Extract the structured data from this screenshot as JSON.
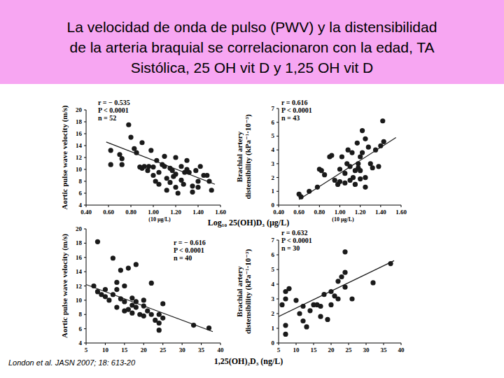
{
  "header": {
    "title": [
      "La velocidad de onda de pulso (PWV) y la distensibilidad",
      "de la arteria braquial se correlacionaron con la edad, TA",
      "Sistólica, 25 OH vit D y 1,25 OH vit D"
    ]
  },
  "footer": {
    "source": "London et al. JASN 2007; 18: 613-20"
  },
  "chart_data": [
    {
      "type": "scatter",
      "x_label": "Log₁₀ 25(OH)D₃ (µg/L)",
      "x_note": "(10 µg/L)",
      "y_label": [
        "Aortic pulse wave velocity (m/s)"
      ],
      "annotations": [
        "r = − 0.535",
        "P < 0.0001",
        "n = 52"
      ],
      "xlim": [
        0.4,
        1.6
      ],
      "xticks": [
        {
          "value": 0.4,
          "label": "0.40"
        },
        {
          "value": 0.6,
          "label": "0.60"
        },
        {
          "value": 0.8,
          "label": "0.80"
        },
        {
          "value": 1.0,
          "label": "1.00"
        },
        {
          "value": 1.2,
          "label": "1.20"
        },
        {
          "value": 1.4,
          "label": "1.40"
        },
        {
          "value": 1.6,
          "label": "1.60"
        }
      ],
      "ylim": [
        4,
        20
      ],
      "yticks": [
        4,
        6,
        8,
        10,
        12,
        14,
        16,
        18,
        20
      ],
      "series": [
        {
          "type": "scatter",
          "marker": "circle",
          "color": "#1a1a1a",
          "x": [
            0.62,
            0.62,
            0.7,
            0.72,
            0.72,
            0.78,
            0.8,
            0.83,
            0.85,
            0.88,
            0.9,
            0.9,
            0.92,
            0.96,
            0.98,
            1.0,
            1.0,
            1.02,
            1.03,
            1.05,
            1.05,
            1.08,
            1.1,
            1.1,
            1.12,
            1.12,
            1.15,
            1.17,
            1.18,
            1.2,
            1.2,
            1.2,
            1.22,
            1.25,
            1.25,
            1.27,
            1.28,
            1.3,
            1.3,
            1.32,
            1.35,
            1.35,
            1.38,
            1.4,
            1.4,
            1.42,
            1.45,
            1.48,
            1.5,
            1.52,
            0.95,
            1.15
          ],
          "values": [
            13.2,
            10.8,
            12.5,
            11.8,
            10.8,
            17.5,
            15.4,
            13.5,
            12.8,
            10.4,
            10.2,
            14.5,
            10.5,
            10.5,
            13.2,
            9.0,
            10.4,
            8.0,
            11.5,
            9.5,
            7.5,
            10.8,
            10.5,
            12.2,
            8.5,
            6.5,
            10.2,
            9.8,
            8.8,
            9.2,
            12.0,
            7.0,
            6.0,
            10.5,
            8.2,
            7.5,
            9.5,
            11.5,
            10.0,
            9.5,
            7.2,
            6.2,
            9.8,
            8.0,
            7.0,
            10.5,
            9.0,
            9.0,
            8.0,
            6.5,
            9.8,
            7.8
          ]
        },
        {
          "type": "line",
          "line_style": "solid",
          "color": "#1a1a1a",
          "x": [
            0.58,
            1.55
          ],
          "values": [
            14.6,
            7.5
          ]
        }
      ]
    },
    {
      "type": "scatter",
      "x_note": "(10 µg/L)",
      "y_label": [
        "Brachial artery",
        "distensibility (kPa⁻¹·10⁻³)"
      ],
      "annotations": [
        "r = 0.616",
        "P < 0.0001",
        "n = 43"
      ],
      "xlim": [
        0.4,
        1.6
      ],
      "xticks": [
        {
          "value": 0.4,
          "label": "0.40"
        },
        {
          "value": 0.6,
          "label": "0.60"
        },
        {
          "value": 0.8,
          "label": "0.80"
        },
        {
          "value": 1.0,
          "label": "1.00"
        },
        {
          "value": 1.2,
          "label": "1.20"
        },
        {
          "value": 1.4,
          "label": "1.40"
        },
        {
          "value": 1.6,
          "label": "1.60"
        }
      ],
      "ylim": [
        0,
        7
      ],
      "yticks": [
        0,
        1,
        2,
        3,
        4,
        5,
        6,
        7
      ],
      "series": [
        {
          "type": "scatter",
          "marker": "circle",
          "color": "#1a1a1a",
          "x": [
            0.6,
            0.62,
            0.7,
            0.78,
            0.8,
            0.82,
            0.85,
            0.9,
            0.92,
            0.95,
            0.98,
            1.0,
            1.0,
            1.02,
            1.05,
            1.05,
            1.07,
            1.08,
            1.1,
            1.1,
            1.12,
            1.13,
            1.15,
            1.15,
            1.17,
            1.18,
            1.18,
            1.2,
            1.2,
            1.2,
            1.22,
            1.22,
            1.25,
            1.25,
            1.25,
            1.28,
            1.3,
            1.32,
            1.35,
            1.38,
            1.4,
            1.42,
            1.43
          ],
          "values": [
            0.8,
            0.6,
            1.0,
            1.3,
            2.6,
            2.5,
            2.2,
            3.5,
            3.6,
            1.8,
            1.5,
            1.7,
            2.6,
            3.5,
            1.6,
            2.3,
            3.0,
            4.0,
            1.8,
            2.8,
            3.8,
            2.0,
            2.5,
            1.5,
            4.5,
            3.0,
            2.7,
            1.9,
            2.5,
            3.5,
            5.4,
            3.8,
            4.8,
            2.0,
            1.3,
            4.2,
            3.0,
            2.7,
            4.0,
            2.8,
            4.3,
            6.1,
            4.6
          ]
        },
        {
          "type": "line",
          "line_style": "solid",
          "color": "#1a1a1a",
          "x": [
            0.6,
            1.55
          ],
          "values": [
            0.4,
            4.9
          ]
        }
      ]
    },
    {
      "type": "scatter",
      "x_label": "1,25(OH)₂D₃ (ng/L)",
      "y_label": [
        "Aortic pulse wave velocity (m/s)"
      ],
      "annotations": [
        "r = − 0.616",
        "P < 0.0001",
        "n = 40"
      ],
      "xlim": [
        5,
        40
      ],
      "xticks": [
        5,
        10,
        15,
        20,
        25,
        30,
        35,
        40
      ],
      "ylim": [
        4,
        20
      ],
      "yticks": [
        4,
        6,
        8,
        10,
        12,
        14,
        16,
        18,
        20
      ],
      "series": [
        {
          "type": "scatter",
          "marker": "circle",
          "color": "#1a1a1a",
          "x": [
            7,
            8,
            8,
            9,
            10,
            10,
            11,
            12,
            12,
            13,
            13,
            13,
            14,
            14,
            15,
            15,
            15,
            16,
            16,
            17,
            17,
            17,
            18,
            18,
            18,
            19,
            20,
            20,
            20,
            21,
            22,
            22,
            23,
            24,
            24,
            24,
            25,
            25,
            33,
            37
          ],
          "values": [
            12.0,
            18.2,
            11.2,
            10.8,
            10.5,
            11.5,
            10.0,
            15.9,
            10.8,
            12.5,
            11.5,
            9.0,
            14.2,
            10.2,
            12.0,
            9.8,
            8.5,
            14.5,
            8.7,
            9.3,
            10.3,
            8.2,
            15.0,
            9.8,
            9.0,
            8.0,
            10.0,
            9.2,
            7.8,
            8.5,
            12.4,
            8.0,
            7.2,
            8.0,
            6.8,
            5.8,
            7.5,
            9.5,
            6.5,
            6.1
          ]
        },
        {
          "type": "line",
          "line_style": "solid",
          "color": "#1a1a1a",
          "x": [
            5,
            38
          ],
          "values": [
            12.2,
            5.6
          ]
        }
      ]
    },
    {
      "type": "scatter",
      "y_label": [
        "Brachial artery",
        "distensibility (kPa⁻¹·10⁻³)"
      ],
      "annotations": [
        "r = 0.632",
        "P < 0.0001",
        "n = 30"
      ],
      "xlim": [
        5,
        40
      ],
      "xticks": [
        5,
        10,
        15,
        20,
        25,
        30,
        35,
        40
      ],
      "ylim": [
        0,
        7
      ],
      "yticks": [
        0,
        1,
        2,
        3,
        4,
        5,
        6,
        7
      ],
      "series": [
        {
          "type": "scatter",
          "marker": "circle",
          "color": "#1a1a1a",
          "x": [
            6,
            7,
            7,
            7,
            7,
            8,
            10,
            11,
            12,
            12,
            13,
            14,
            15,
            16,
            17,
            17,
            18,
            19,
            20,
            20,
            21,
            22,
            22,
            23,
            24,
            24,
            24,
            26,
            32,
            37
          ],
          "values": [
            2.6,
            1.2,
            0.6,
            3.0,
            3.5,
            3.7,
            2.9,
            2.0,
            1.5,
            2.5,
            1.1,
            2.2,
            2.6,
            2.6,
            2.5,
            1.8,
            3.3,
            1.6,
            3.5,
            2.6,
            3.2,
            4.2,
            3.0,
            4.5,
            4.8,
            3.8,
            6.2,
            3.0,
            4.1,
            5.4
          ]
        },
        {
          "type": "line",
          "line_style": "solid",
          "color": "#1a1a1a",
          "x": [
            5,
            38
          ],
          "values": [
            1.8,
            5.6
          ]
        }
      ]
    }
  ]
}
